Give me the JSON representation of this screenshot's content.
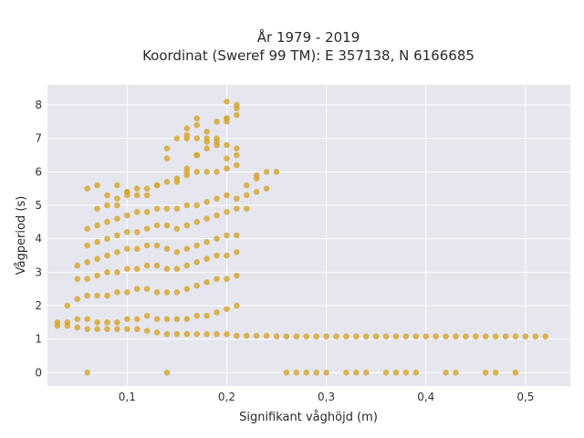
{
  "chart_data": {
    "type": "scatter",
    "title_line1": "År 1979 - 2019",
    "title_line2": "Koordinat (Sweref 99 TM): E 357138, N 6166685",
    "xlabel": "Signifikant våghöjd (m)",
    "ylabel": "Vågperiod (s)",
    "xlim": [
      0.02,
      0.545
    ],
    "ylim": [
      -0.4,
      8.6
    ],
    "xticks": [
      0.1,
      0.2,
      0.3,
      0.4,
      0.5
    ],
    "xtick_labels": [
      "0,1",
      "0,2",
      "0,3",
      "0,4",
      "0,5"
    ],
    "yticks": [
      0,
      1,
      2,
      3,
      4,
      5,
      6,
      7,
      8
    ],
    "ytick_labels": [
      "0",
      "1",
      "2",
      "3",
      "4",
      "5",
      "6",
      "7",
      "8"
    ],
    "grid": true,
    "colors": {
      "marker": "#d4a52a",
      "plot_background": "#e6e6ef",
      "grid": "#ffffff"
    },
    "x": [
      0.03,
      0.04,
      0.05,
      0.06,
      0.07,
      0.08,
      0.09,
      0.1,
      0.11,
      0.12,
      0.13,
      0.14,
      0.15,
      0.16,
      0.17,
      0.18,
      0.19,
      0.2,
      0.21,
      0.22,
      0.23,
      0.24,
      0.25,
      0.26,
      0.27,
      0.28,
      0.29,
      0.3,
      0.31,
      0.32,
      0.33,
      0.34,
      0.35,
      0.36,
      0.37,
      0.38,
      0.39,
      0.4,
      0.41,
      0.42,
      0.43,
      0.44,
      0.45,
      0.46,
      0.47,
      0.48,
      0.49,
      0.5,
      0.51,
      0.52,
      0.03,
      0.04,
      0.05,
      0.06,
      0.07,
      0.08,
      0.09,
      0.1,
      0.11,
      0.12,
      0.13,
      0.14,
      0.15,
      0.16,
      0.17,
      0.18,
      0.19,
      0.2,
      0.21,
      0.04,
      0.05,
      0.06,
      0.07,
      0.08,
      0.09,
      0.1,
      0.11,
      0.12,
      0.13,
      0.14,
      0.15,
      0.16,
      0.17,
      0.18,
      0.19,
      0.2,
      0.21,
      0.05,
      0.06,
      0.07,
      0.08,
      0.09,
      0.1,
      0.11,
      0.12,
      0.13,
      0.14,
      0.15,
      0.16,
      0.17,
      0.18,
      0.19,
      0.2,
      0.21,
      0.05,
      0.06,
      0.07,
      0.08,
      0.09,
      0.1,
      0.11,
      0.12,
      0.13,
      0.14,
      0.15,
      0.16,
      0.17,
      0.18,
      0.19,
      0.2,
      0.21,
      0.06,
      0.07,
      0.08,
      0.09,
      0.1,
      0.11,
      0.12,
      0.13,
      0.14,
      0.15,
      0.16,
      0.17,
      0.18,
      0.19,
      0.2,
      0.21,
      0.06,
      0.07,
      0.08,
      0.09,
      0.1,
      0.11,
      0.12,
      0.13,
      0.14,
      0.15,
      0.16,
      0.17,
      0.18,
      0.19,
      0.2,
      0.21,
      0.22,
      0.07,
      0.08,
      0.09,
      0.1,
      0.11,
      0.12,
      0.13,
      0.14,
      0.15,
      0.16,
      0.17,
      0.18,
      0.19,
      0.2,
      0.21,
      0.22,
      0.23,
      0.08,
      0.09,
      0.1,
      0.12,
      0.14,
      0.16,
      0.17,
      0.18,
      0.19,
      0.2,
      0.21,
      0.22,
      0.23,
      0.24,
      0.06,
      0.07,
      0.09,
      0.1,
      0.11,
      0.13,
      0.15,
      0.16,
      0.17,
      0.18,
      0.19,
      0.2,
      0.21,
      0.23,
      0.24,
      0.25,
      0.14,
      0.15,
      0.16,
      0.17,
      0.18,
      0.19,
      0.2,
      0.21,
      0.16,
      0.17,
      0.18,
      0.19,
      0.2,
      0.21,
      0.16,
      0.17,
      0.2,
      0.21,
      0.2,
      0.06,
      0.14,
      0.26,
      0.27,
      0.28,
      0.29,
      0.3,
      0.32,
      0.33,
      0.34,
      0.36,
      0.37,
      0.38,
      0.39,
      0.42,
      0.43,
      0.46,
      0.47,
      0.49
    ],
    "y": [
      1.4,
      1.4,
      1.35,
      1.3,
      1.3,
      1.3,
      1.3,
      1.3,
      1.3,
      1.25,
      1.2,
      1.15,
      1.15,
      1.15,
      1.15,
      1.15,
      1.15,
      1.15,
      1.1,
      1.1,
      1.1,
      1.1,
      1.08,
      1.08,
      1.08,
      1.08,
      1.08,
      1.08,
      1.08,
      1.08,
      1.08,
      1.08,
      1.08,
      1.08,
      1.08,
      1.08,
      1.08,
      1.08,
      1.08,
      1.08,
      1.08,
      1.08,
      1.08,
      1.08,
      1.08,
      1.08,
      1.08,
      1.08,
      1.08,
      1.08,
      1.5,
      1.5,
      1.6,
      1.6,
      1.5,
      1.5,
      1.5,
      1.6,
      1.6,
      1.7,
      1.6,
      1.6,
      1.6,
      1.6,
      1.7,
      1.7,
      1.8,
      1.9,
      2.0,
      2.0,
      2.2,
      2.3,
      2.3,
      2.3,
      2.4,
      2.4,
      2.5,
      2.5,
      2.4,
      2.4,
      2.4,
      2.5,
      2.6,
      2.7,
      2.8,
      2.8,
      2.9,
      2.8,
      2.8,
      2.9,
      3.0,
      3.0,
      3.1,
      3.1,
      3.2,
      3.2,
      3.1,
      3.1,
      3.2,
      3.3,
      3.4,
      3.5,
      3.5,
      3.6,
      3.2,
      3.3,
      3.4,
      3.5,
      3.6,
      3.7,
      3.7,
      3.8,
      3.8,
      3.7,
      3.6,
      3.7,
      3.8,
      3.9,
      4.0,
      4.1,
      4.1,
      3.8,
      3.9,
      4.0,
      4.1,
      4.2,
      4.2,
      4.3,
      4.4,
      4.4,
      4.3,
      4.4,
      4.5,
      4.6,
      4.7,
      4.8,
      4.9,
      4.3,
      4.4,
      4.5,
      4.6,
      4.7,
      4.8,
      4.8,
      4.9,
      4.9,
      4.9,
      5.0,
      5.0,
      5.1,
      5.2,
      5.3,
      5.2,
      4.9,
      4.9,
      5.0,
      5.2,
      5.3,
      5.3,
      5.5,
      5.6,
      5.7,
      5.8,
      5.9,
      6.0,
      6.0,
      6.0,
      6.1,
      6.2,
      5.6,
      5.8,
      5.3,
      5.6,
      5.4,
      5.3,
      6.4,
      7.1,
      7.6,
      7.2,
      7.0,
      7.5,
      7.9,
      5.3,
      5.9,
      6.0,
      5.5,
      5.6,
      5.0,
      5.4,
      5.5,
      5.6,
      5.7,
      6.1,
      6.5,
      6.7,
      6.9,
      6.4,
      6.5,
      5.4,
      5.5,
      6.0,
      6.7,
      7.0,
      7.3,
      7.4,
      6.9,
      6.8,
      6.8,
      8.0,
      6.0,
      6.5,
      7.0,
      7.5,
      7.6,
      6.7,
      7.0,
      7.0,
      7.6,
      7.7,
      8.1,
      0.0,
      0.0,
      0.0,
      0.0,
      0.0,
      0.0,
      0.0,
      0.0,
      0.0,
      0.0,
      0.0,
      0.0,
      0.0,
      0.0,
      0.0,
      0.0,
      0.0,
      0.0,
      0.0
    ]
  }
}
